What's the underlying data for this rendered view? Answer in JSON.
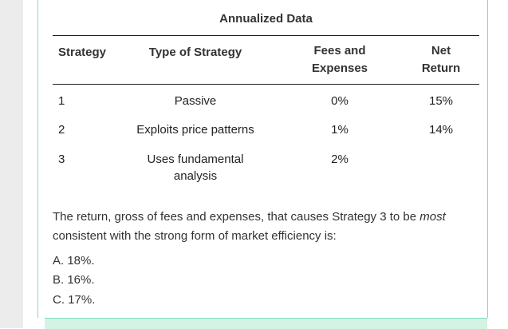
{
  "table": {
    "title": "Annualized Data",
    "headers": {
      "strategy": "Strategy",
      "type": "Type of Strategy",
      "fees_line1": "Fees and",
      "fees_line2": "Expenses",
      "net_line1": "Net",
      "net_line2": "Return"
    },
    "rows": [
      {
        "strategy": "1",
        "type_line1": "Passive",
        "type_line2": "",
        "fees": "0%",
        "net": "15%"
      },
      {
        "strategy": "2",
        "type_line1": "Exploits price patterns",
        "type_line2": "",
        "fees": "1%",
        "net": "14%"
      },
      {
        "strategy": "3",
        "type_line1": "Uses fundamental",
        "type_line2": "analysis",
        "fees": "2%",
        "net": ""
      }
    ]
  },
  "question": {
    "part1": "The return, gross of fees and expenses, that causes Strategy 3 to be ",
    "emphasis": "most",
    "part2": " consistent with the strong form of market efficiency is:"
  },
  "choices": [
    "A. 18%.",
    "B. 16%.",
    "C. 17%."
  ]
}
